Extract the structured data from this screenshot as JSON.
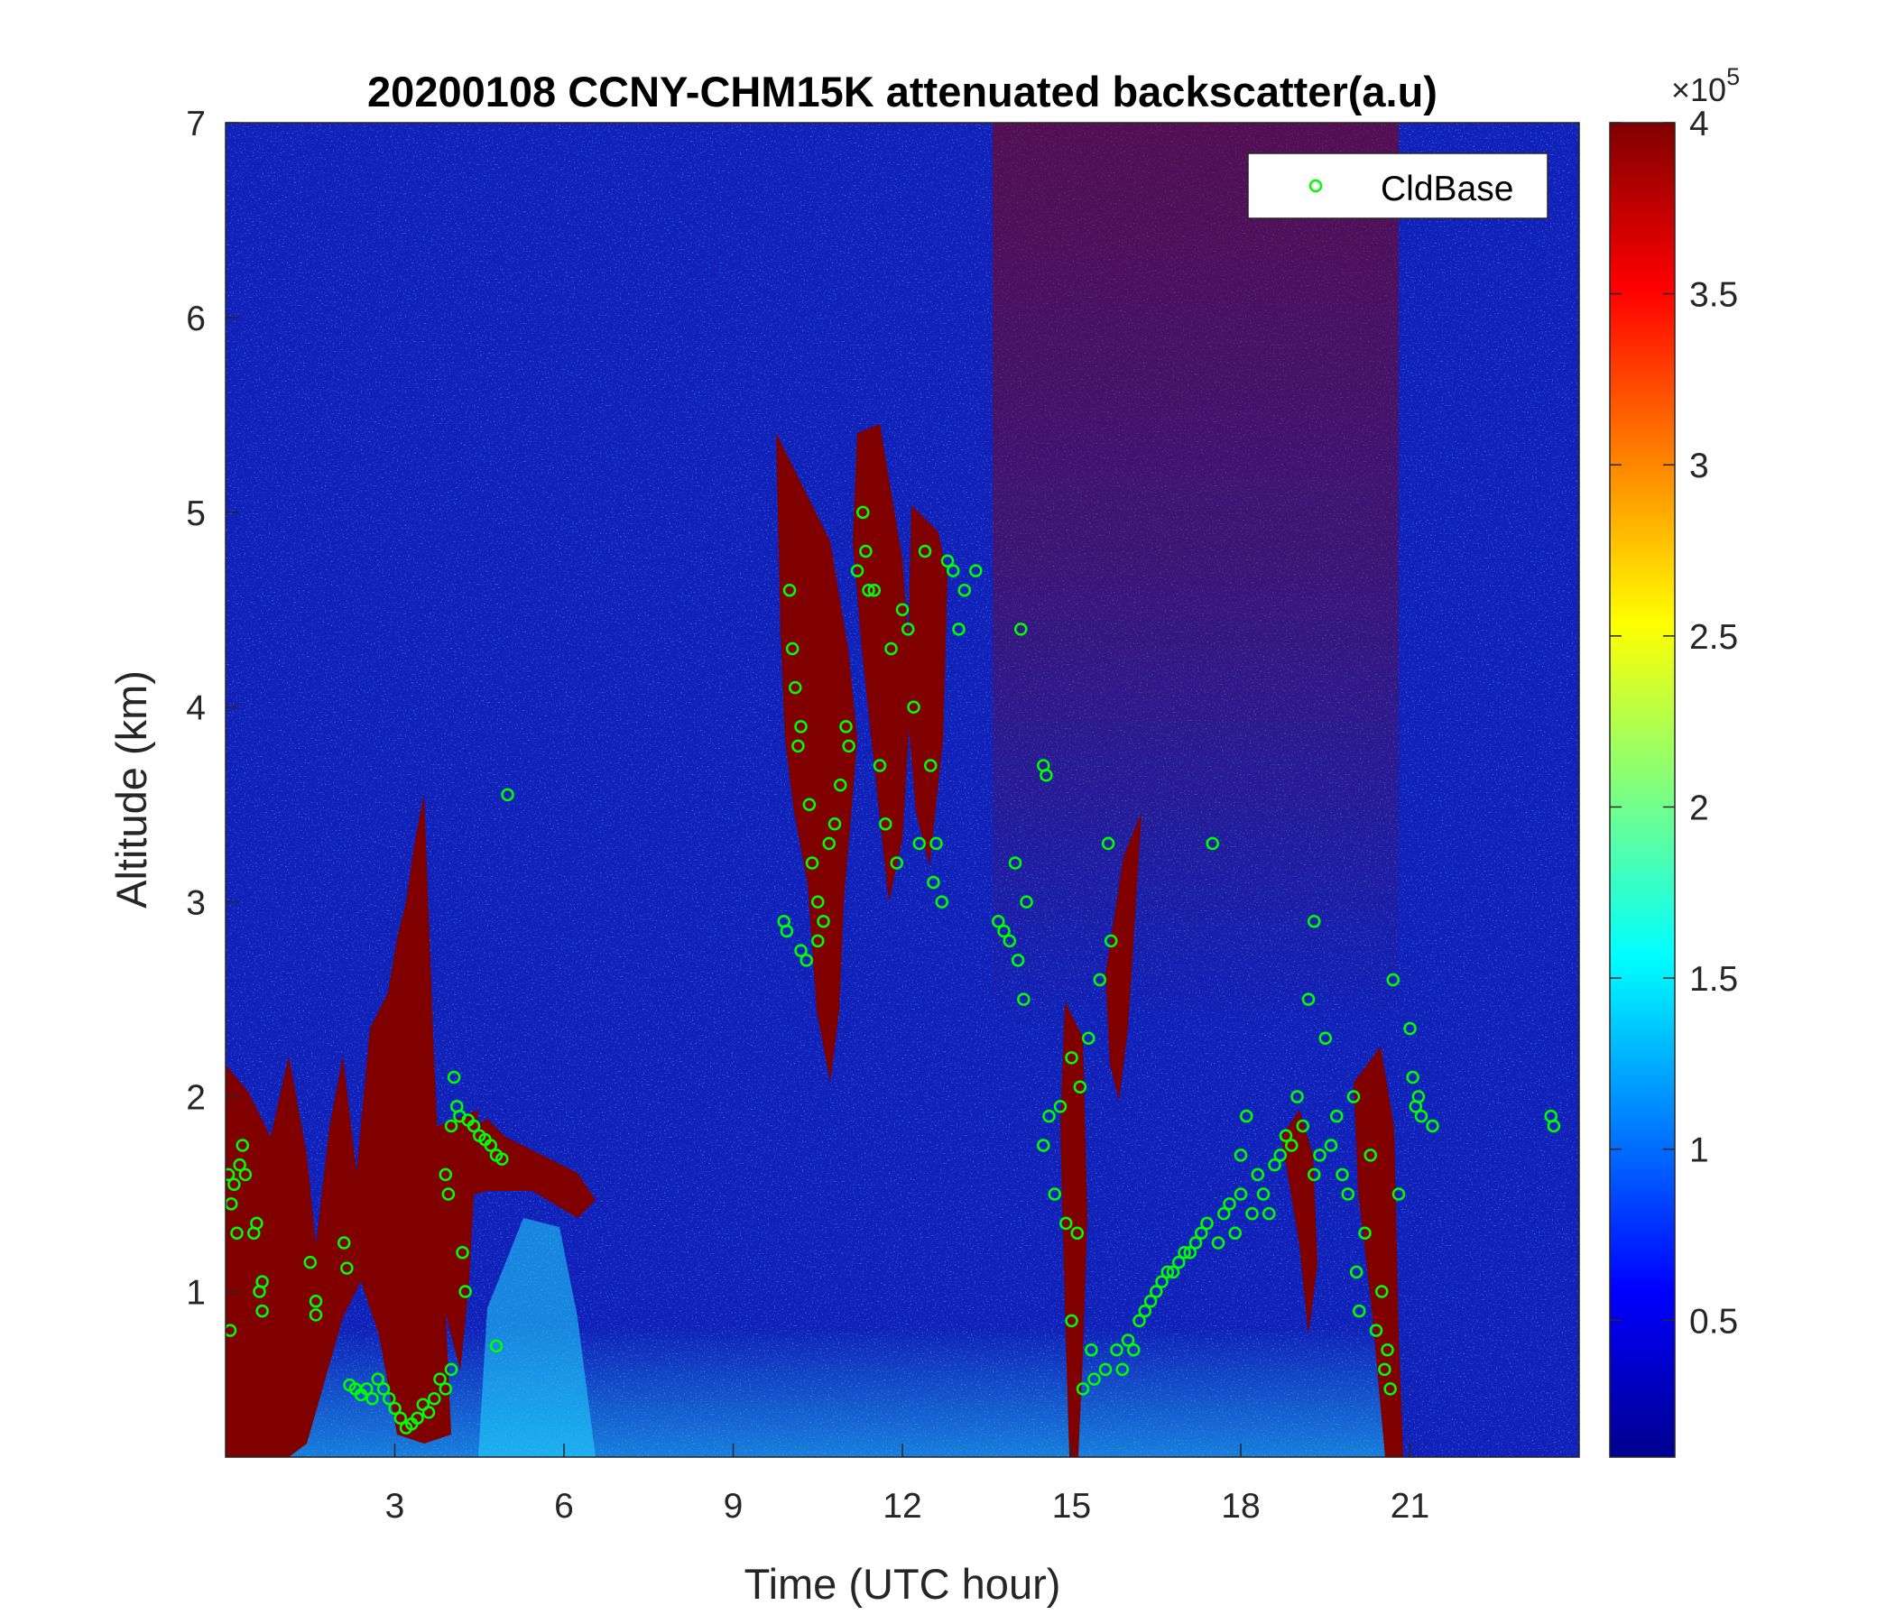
{
  "chart_data": {
    "type": "heatmap",
    "title": "20200108 CCNY-CHM15K attenuated backscatter(a.u)",
    "xlabel": "Time (UTC hour)",
    "ylabel": "Altitude (km)",
    "xlim": [
      0,
      24
    ],
    "ylim": [
      0.15,
      7
    ],
    "xticks": [
      3,
      6,
      9,
      12,
      15,
      18,
      21
    ],
    "yticks": [
      1,
      2,
      3,
      4,
      5,
      6,
      7
    ],
    "colorbar": {
      "colormap": "jet",
      "limits": [
        0.1,
        4
      ],
      "ticks": [
        0.5,
        1,
        1.5,
        2,
        2.5,
        3,
        3.5,
        4
      ],
      "exponent_label": "×10",
      "exponent": "5"
    },
    "legend": {
      "position": "top-right",
      "entries": [
        "CldBase"
      ]
    },
    "series": [
      {
        "name": "CldBase",
        "marker": "circle",
        "color": "#00ff00",
        "points": [
          [
            0.05,
            1.6
          ],
          [
            0.08,
            0.8
          ],
          [
            0.1,
            1.45
          ],
          [
            0.15,
            1.55
          ],
          [
            0.2,
            1.3
          ],
          [
            0.25,
            1.65
          ],
          [
            0.3,
            1.75
          ],
          [
            0.35,
            1.6
          ],
          [
            0.5,
            1.3
          ],
          [
            0.55,
            1.35
          ],
          [
            0.6,
            1.0
          ],
          [
            0.65,
            1.05
          ],
          [
            0.65,
            0.9
          ],
          [
            1.5,
            1.15
          ],
          [
            1.6,
            0.95
          ],
          [
            1.6,
            0.88
          ],
          [
            2.1,
            1.25
          ],
          [
            2.15,
            1.12
          ],
          [
            2.2,
            0.52
          ],
          [
            2.3,
            0.5
          ],
          [
            2.4,
            0.47
          ],
          [
            2.5,
            0.5
          ],
          [
            2.6,
            0.45
          ],
          [
            2.7,
            0.55
          ],
          [
            2.8,
            0.5
          ],
          [
            2.9,
            0.45
          ],
          [
            3.0,
            0.4
          ],
          [
            3.1,
            0.35
          ],
          [
            3.2,
            0.3
          ],
          [
            3.3,
            0.32
          ],
          [
            3.4,
            0.35
          ],
          [
            3.5,
            0.42
          ],
          [
            3.6,
            0.38
          ],
          [
            3.7,
            0.45
          ],
          [
            3.8,
            0.55
          ],
          [
            3.9,
            0.5
          ],
          [
            4.0,
            0.6
          ],
          [
            3.9,
            1.6
          ],
          [
            3.95,
            1.5
          ],
          [
            4.0,
            1.85
          ],
          [
            4.05,
            2.1
          ],
          [
            4.1,
            1.95
          ],
          [
            4.15,
            1.9
          ],
          [
            4.2,
            1.2
          ],
          [
            4.25,
            1.0
          ],
          [
            4.3,
            1.88
          ],
          [
            4.4,
            1.85
          ],
          [
            4.5,
            1.8
          ],
          [
            4.6,
            1.78
          ],
          [
            4.7,
            1.75
          ],
          [
            4.8,
            1.7
          ],
          [
            4.9,
            1.68
          ],
          [
            4.8,
            0.72
          ],
          [
            5.0,
            3.55
          ],
          [
            9.9,
            2.9
          ],
          [
            9.95,
            2.85
          ],
          [
            10.0,
            4.6
          ],
          [
            10.05,
            4.3
          ],
          [
            10.1,
            4.1
          ],
          [
            10.15,
            3.8
          ],
          [
            10.2,
            3.9
          ],
          [
            10.2,
            2.75
          ],
          [
            10.3,
            2.7
          ],
          [
            10.35,
            3.5
          ],
          [
            10.4,
            3.2
          ],
          [
            10.5,
            3.0
          ],
          [
            10.5,
            2.8
          ],
          [
            10.6,
            2.9
          ],
          [
            10.7,
            3.3
          ],
          [
            10.8,
            3.4
          ],
          [
            10.9,
            3.6
          ],
          [
            11.0,
            3.9
          ],
          [
            11.05,
            3.8
          ],
          [
            11.2,
            4.7
          ],
          [
            11.3,
            5.0
          ],
          [
            11.35,
            4.8
          ],
          [
            11.4,
            4.6
          ],
          [
            11.5,
            4.6
          ],
          [
            11.6,
            3.7
          ],
          [
            11.7,
            3.4
          ],
          [
            11.8,
            4.3
          ],
          [
            11.9,
            3.2
          ],
          [
            12.0,
            4.5
          ],
          [
            12.1,
            4.4
          ],
          [
            12.2,
            4.0
          ],
          [
            12.3,
            3.3
          ],
          [
            12.4,
            4.8
          ],
          [
            12.5,
            3.7
          ],
          [
            12.55,
            3.1
          ],
          [
            12.6,
            3.3
          ],
          [
            12.7,
            3.0
          ],
          [
            12.8,
            4.75
          ],
          [
            12.9,
            4.7
          ],
          [
            13.0,
            4.4
          ],
          [
            13.1,
            4.6
          ],
          [
            13.3,
            4.7
          ],
          [
            13.7,
            2.9
          ],
          [
            13.8,
            2.85
          ],
          [
            13.9,
            2.8
          ],
          [
            14.0,
            3.2
          ],
          [
            14.05,
            2.7
          ],
          [
            14.1,
            4.4
          ],
          [
            14.15,
            2.5
          ],
          [
            14.2,
            3.0
          ],
          [
            14.5,
            3.7
          ],
          [
            14.55,
            3.65
          ],
          [
            14.5,
            1.75
          ],
          [
            14.6,
            1.9
          ],
          [
            14.7,
            1.5
          ],
          [
            14.8,
            1.95
          ],
          [
            14.9,
            1.35
          ],
          [
            15.0,
            2.2
          ],
          [
            15.0,
            0.85
          ],
          [
            15.1,
            1.3
          ],
          [
            15.15,
            2.05
          ],
          [
            15.2,
            0.5
          ],
          [
            15.3,
            2.3
          ],
          [
            15.35,
            0.7
          ],
          [
            15.4,
            0.55
          ],
          [
            15.5,
            2.6
          ],
          [
            15.6,
            0.6
          ],
          [
            15.65,
            3.3
          ],
          [
            15.7,
            2.8
          ],
          [
            15.8,
            0.7
          ],
          [
            15.9,
            0.6
          ],
          [
            16.0,
            0.75
          ],
          [
            16.1,
            0.7
          ],
          [
            16.2,
            0.85
          ],
          [
            16.3,
            0.9
          ],
          [
            16.4,
            0.95
          ],
          [
            16.5,
            1.0
          ],
          [
            16.6,
            1.05
          ],
          [
            16.7,
            1.1
          ],
          [
            16.8,
            1.1
          ],
          [
            16.9,
            1.15
          ],
          [
            17.0,
            1.2
          ],
          [
            17.1,
            1.2
          ],
          [
            17.2,
            1.25
          ],
          [
            17.3,
            1.3
          ],
          [
            17.4,
            1.35
          ],
          [
            17.5,
            3.3
          ],
          [
            17.6,
            1.25
          ],
          [
            17.7,
            1.4
          ],
          [
            17.8,
            1.45
          ],
          [
            17.9,
            1.3
          ],
          [
            18.0,
            1.5
          ],
          [
            18.0,
            1.7
          ],
          [
            18.1,
            1.9
          ],
          [
            18.2,
            1.4
          ],
          [
            18.3,
            1.6
          ],
          [
            18.4,
            1.5
          ],
          [
            18.5,
            1.4
          ],
          [
            18.6,
            1.65
          ],
          [
            18.7,
            1.7
          ],
          [
            18.8,
            1.8
          ],
          [
            18.9,
            1.75
          ],
          [
            19.0,
            2.0
          ],
          [
            19.1,
            1.85
          ],
          [
            19.2,
            2.5
          ],
          [
            19.3,
            2.9
          ],
          [
            19.3,
            1.6
          ],
          [
            19.4,
            1.7
          ],
          [
            19.5,
            2.3
          ],
          [
            19.6,
            1.75
          ],
          [
            19.7,
            1.9
          ],
          [
            19.8,
            1.6
          ],
          [
            19.9,
            1.5
          ],
          [
            20.0,
            2.0
          ],
          [
            20.05,
            1.1
          ],
          [
            20.1,
            0.9
          ],
          [
            20.2,
            1.3
          ],
          [
            20.3,
            1.7
          ],
          [
            20.4,
            0.8
          ],
          [
            20.5,
            1.0
          ],
          [
            20.55,
            0.6
          ],
          [
            20.6,
            0.7
          ],
          [
            20.65,
            0.5
          ],
          [
            20.7,
            2.6
          ],
          [
            20.8,
            1.5
          ],
          [
            21.0,
            2.35
          ],
          [
            21.05,
            2.1
          ],
          [
            21.1,
            1.95
          ],
          [
            21.15,
            2.0
          ],
          [
            21.2,
            1.9
          ],
          [
            21.4,
            1.85
          ],
          [
            23.5,
            1.9
          ],
          [
            23.55,
            1.85
          ]
        ]
      }
    ]
  }
}
